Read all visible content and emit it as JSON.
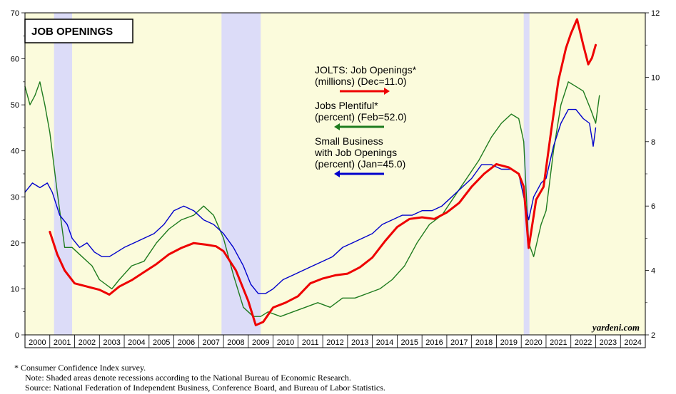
{
  "chart_data": {
    "type": "line",
    "title": "JOB OPENINGS",
    "credit": "yardeni.com",
    "x_range": [
      2000,
      2025
    ],
    "x_tick_labels": [
      "2000",
      "2001",
      "2002",
      "2003",
      "2004",
      "2005",
      "2006",
      "2007",
      "2008",
      "2009",
      "2010",
      "2011",
      "2012",
      "2013",
      "2014",
      "2015",
      "2016",
      "2017",
      "2018",
      "2019",
      "2020",
      "2021",
      "2022",
      "2023",
      "2024"
    ],
    "y_left": {
      "range": [
        0,
        70
      ],
      "ticks": [
        "0",
        "10",
        "20",
        "30",
        "40",
        "50",
        "60",
        "70"
      ]
    },
    "y_right": {
      "range": [
        2,
        12
      ],
      "ticks": [
        "2",
        "4",
        "6",
        "8",
        "10",
        "12"
      ]
    },
    "recessions": [
      [
        2001.17,
        2001.9
      ],
      [
        2007.92,
        2009.5
      ],
      [
        2020.1,
        2020.33
      ]
    ],
    "series": [
      {
        "name": "JOLTS: Job Openings",
        "legend": [
          "JOLTS: Job Openings*",
          "(millions) (Dec=11.0)"
        ],
        "color": "#ee0000",
        "axis": "right",
        "x": [
          2001.0,
          2001.3,
          2001.6,
          2002.0,
          2002.5,
          2003.0,
          2003.4,
          2003.8,
          2004.3,
          2004.8,
          2005.3,
          2005.8,
          2006.3,
          2006.8,
          2007.3,
          2007.7,
          2008.0,
          2008.5,
          2009.0,
          2009.3,
          2009.6,
          2010.0,
          2010.5,
          2011.0,
          2011.5,
          2012.0,
          2012.5,
          2013.0,
          2013.5,
          2014.0,
          2014.5,
          2015.0,
          2015.5,
          2016.0,
          2016.5,
          2017.0,
          2017.5,
          2018.0,
          2018.5,
          2019.0,
          2019.5,
          2019.9,
          2020.1,
          2020.3,
          2020.6,
          2020.9,
          2021.2,
          2021.5,
          2021.8,
          2022.0,
          2022.25,
          2022.5,
          2022.7,
          2022.85,
          2023.0
        ],
        "values": [
          5.2,
          4.5,
          4.0,
          3.6,
          3.5,
          3.4,
          3.25,
          3.5,
          3.7,
          3.95,
          4.2,
          4.5,
          4.7,
          4.85,
          4.8,
          4.75,
          4.6,
          4.0,
          3.05,
          2.3,
          2.4,
          2.85,
          3.0,
          3.2,
          3.6,
          3.75,
          3.85,
          3.9,
          4.1,
          4.4,
          4.9,
          5.35,
          5.6,
          5.65,
          5.6,
          5.8,
          6.1,
          6.6,
          7.0,
          7.3,
          7.2,
          7.0,
          6.6,
          4.7,
          6.2,
          6.6,
          8.3,
          9.9,
          10.9,
          11.35,
          11.8,
          11.0,
          10.4,
          10.6,
          11.0
        ]
      },
      {
        "name": "Jobs Plentiful",
        "legend": [
          "Jobs Plentiful*",
          "(percent) (Feb=52.0)"
        ],
        "color": "#1e7b1e",
        "axis": "left",
        "x": [
          2000.0,
          2000.2,
          2000.4,
          2000.6,
          2000.8,
          2001.0,
          2001.3,
          2001.6,
          2001.9,
          2002.3,
          2002.7,
          2003.0,
          2003.5,
          2003.8,
          2004.3,
          2004.8,
          2005.3,
          2005.8,
          2006.3,
          2006.8,
          2007.2,
          2007.6,
          2008.0,
          2008.4,
          2008.8,
          2009.2,
          2009.5,
          2009.8,
          2010.3,
          2010.8,
          2011.3,
          2011.8,
          2012.3,
          2012.8,
          2013.3,
          2013.8,
          2014.3,
          2014.8,
          2015.3,
          2015.8,
          2016.3,
          2016.8,
          2017.3,
          2017.8,
          2018.3,
          2018.8,
          2019.2,
          2019.6,
          2019.9,
          2020.1,
          2020.3,
          2020.5,
          2020.8,
          2021.0,
          2021.3,
          2021.6,
          2021.9,
          2022.2,
          2022.5,
          2022.8,
          2023.0,
          2023.15
        ],
        "values": [
          54,
          50,
          52,
          55,
          50,
          44,
          31,
          19,
          19,
          17,
          15,
          12,
          10,
          12,
          15,
          16,
          20,
          23,
          25,
          26,
          28,
          26,
          21,
          13,
          6,
          4,
          4,
          5,
          4,
          5,
          6,
          7,
          6,
          8,
          8,
          9,
          10,
          12,
          15,
          20,
          24,
          26,
          30,
          34,
          38,
          43,
          46,
          48,
          47,
          42,
          20,
          17,
          24,
          27,
          40,
          50,
          55,
          54,
          53,
          49,
          46,
          52
        ]
      },
      {
        "name": "Small Business with Job Openings",
        "legend": [
          "Small Business",
          "with Job Openings",
          "(percent) (Jan=45.0)"
        ],
        "color": "#0000cc",
        "axis": "left",
        "x": [
          2000.0,
          2000.3,
          2000.6,
          2000.9,
          2001.1,
          2001.4,
          2001.7,
          2001.9,
          2002.2,
          2002.5,
          2002.8,
          2003.1,
          2003.4,
          2003.7,
          2004.0,
          2004.4,
          2004.8,
          2005.2,
          2005.6,
          2006.0,
          2006.4,
          2006.8,
          2007.2,
          2007.6,
          2008.0,
          2008.4,
          2008.8,
          2009.1,
          2009.4,
          2009.7,
          2010.0,
          2010.4,
          2010.8,
          2011.2,
          2011.6,
          2012.0,
          2012.4,
          2012.8,
          2013.2,
          2013.6,
          2014.0,
          2014.4,
          2014.8,
          2015.2,
          2015.6,
          2016.0,
          2016.4,
          2016.8,
          2017.2,
          2017.6,
          2018.0,
          2018.4,
          2018.8,
          2019.2,
          2019.6,
          2019.9,
          2020.1,
          2020.3,
          2020.5,
          2020.8,
          2021.0,
          2021.3,
          2021.6,
          2021.9,
          2022.2,
          2022.5,
          2022.75,
          2022.9,
          2023.0
        ],
        "values": [
          31,
          33,
          32,
          33,
          31,
          26,
          24,
          21,
          19,
          20,
          18,
          17,
          17,
          18,
          19,
          20,
          21,
          22,
          24,
          27,
          28,
          27,
          25,
          24,
          22,
          19,
          15,
          11,
          9,
          9,
          10,
          12,
          13,
          14,
          15,
          16,
          17,
          19,
          20,
          21,
          22,
          24,
          25,
          26,
          26,
          27,
          27,
          28,
          30,
          32,
          34,
          37,
          37,
          36,
          36,
          35,
          30,
          25,
          30,
          33,
          34,
          41,
          46,
          49,
          49,
          47,
          46,
          41,
          45
        ]
      }
    ]
  },
  "footnotes": {
    "line1": "*   Consumer Confidence Index survey.",
    "line2": "Note: Shaded areas denote recessions according to the National Bureau of Economic Research.",
    "line3": "Source: National Federation of Independent Business, Conference Board, and Bureau of Labor Statistics."
  }
}
